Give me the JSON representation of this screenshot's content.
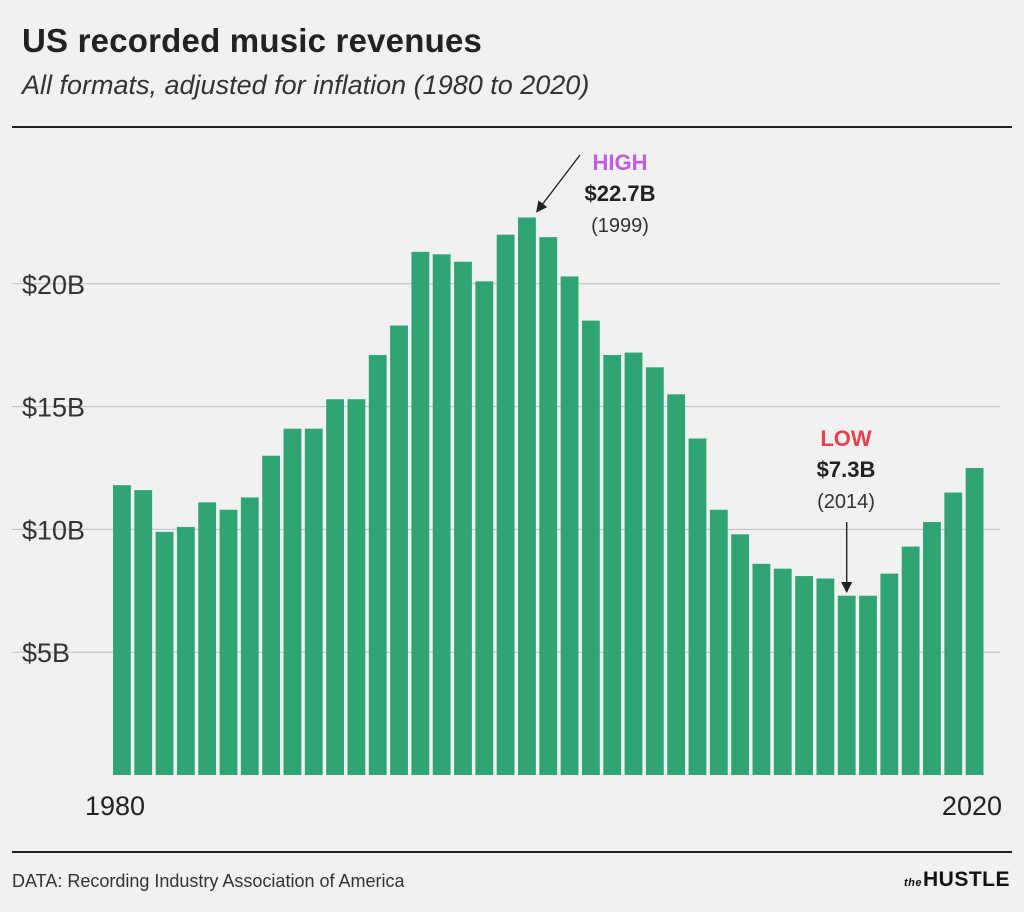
{
  "title": "US recorded music revenues",
  "subtitle": "All formats, adjusted for inflation (1980 to 2020)",
  "source": "DATA: Recording Industry Association of America",
  "brand": {
    "prefix": "the",
    "name": "HUSTLE"
  },
  "colors": {
    "bar": "#2fa475",
    "grid": "#bdbdbd",
    "high": "#c25ce0",
    "low": "#e8414c",
    "text": "#222222"
  },
  "chart_data": {
    "type": "bar",
    "title": "US recorded music revenues",
    "subtitle": "All formats, adjusted for inflation (1980 to 2020)",
    "xlabel": "",
    "ylabel": "",
    "ylim": [
      0,
      25
    ],
    "grid": true,
    "yticks": [
      {
        "value": 5,
        "label": "$5B"
      },
      {
        "value": 10,
        "label": "$10B"
      },
      {
        "value": 15,
        "label": "$15B"
      },
      {
        "value": 20,
        "label": "$20B"
      }
    ],
    "xtick_labels": [
      {
        "year": 1980,
        "label": "1980"
      },
      {
        "year": 2020,
        "label": "2020"
      }
    ],
    "categories": [
      1980,
      1981,
      1982,
      1983,
      1984,
      1985,
      1986,
      1987,
      1988,
      1989,
      1990,
      1991,
      1992,
      1993,
      1994,
      1995,
      1996,
      1997,
      1998,
      1999,
      2000,
      2001,
      2002,
      2003,
      2004,
      2005,
      2006,
      2007,
      2008,
      2009,
      2010,
      2011,
      2012,
      2013,
      2014,
      2015,
      2016,
      2017,
      2018,
      2019,
      2020
    ],
    "values": [
      11.8,
      11.6,
      9.9,
      10.1,
      11.1,
      10.8,
      11.3,
      13.0,
      14.1,
      14.1,
      15.3,
      15.3,
      17.1,
      18.3,
      21.3,
      21.2,
      20.9,
      20.1,
      22.0,
      22.7,
      21.9,
      20.3,
      18.5,
      17.1,
      17.2,
      16.6,
      15.5,
      13.7,
      10.8,
      9.8,
      8.6,
      8.4,
      8.1,
      8.0,
      7.3,
      7.3,
      8.2,
      9.3,
      10.3,
      11.5,
      12.5
    ],
    "annotations": [
      {
        "tag": "HIGH",
        "value": "$22.7B",
        "year_label": "(1999)",
        "year": 1999,
        "color_key": "high"
      },
      {
        "tag": "LOW",
        "value": "$7.3B",
        "year_label": "(2014)",
        "year": 2014,
        "color_key": "low"
      }
    ]
  }
}
